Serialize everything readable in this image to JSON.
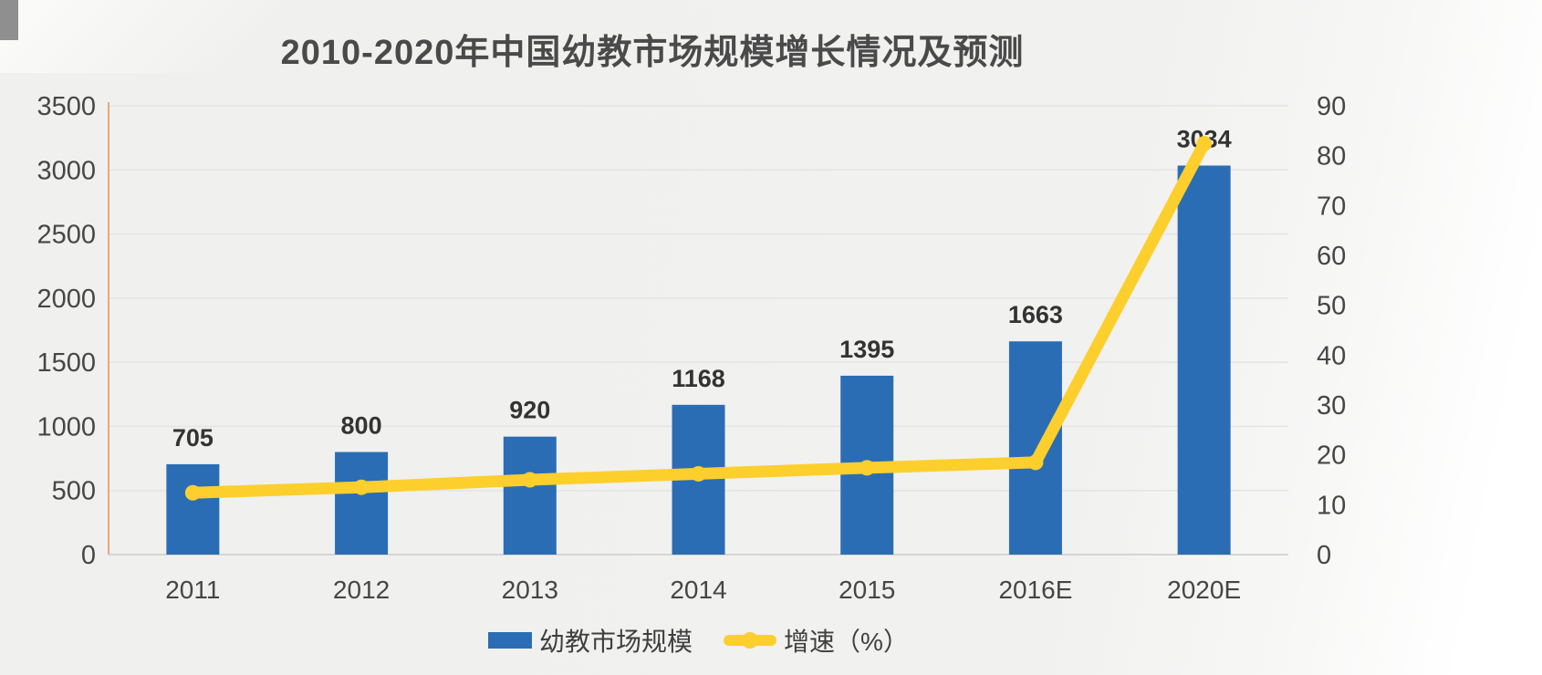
{
  "chart_data": {
    "type": "combo",
    "title": "2010-2020年中国幼教市场规模增长情况及预测",
    "categories": [
      "2011",
      "2012",
      "2013",
      "2014",
      "2015",
      "2016E",
      "2020E"
    ],
    "series": [
      {
        "name": "幼教市场规模",
        "type": "bar",
        "axis": "left",
        "color": "#2B6DB5",
        "values": [
          705,
          800,
          920,
          1168,
          1395,
          1663,
          3034
        ],
        "data_labels": [
          705,
          800,
          920,
          1168,
          1395,
          1663,
          3034
        ]
      },
      {
        "name": "增速（%）",
        "type": "line",
        "axis": "right",
        "color": "#FDCF2D",
        "values": [
          12.4,
          13.5,
          15.0,
          16.2,
          17.4,
          18.5,
          82.4
        ],
        "data_labels": false
      }
    ],
    "left_axis": {
      "min": 0,
      "max": 3500,
      "step": 500,
      "ticks": [
        0,
        500,
        1000,
        1500,
        2000,
        2500,
        3000,
        3500
      ]
    },
    "right_axis": {
      "min": 0,
      "max": 90,
      "step": 10,
      "ticks": [
        0,
        10,
        20,
        30,
        40,
        50,
        60,
        70,
        80,
        90
      ]
    },
    "grid": true,
    "legend_position": "bottom"
  },
  "colors": {
    "bar": "#2B6DB5",
    "line": "#FDCF2D",
    "grid": "#e4e4e2",
    "baseline": "#d5d5d3",
    "left_axis_line": "#eca57b",
    "tick_text": "#464646",
    "value_label_text": "#333333",
    "title_text": "#4a4a4a"
  }
}
